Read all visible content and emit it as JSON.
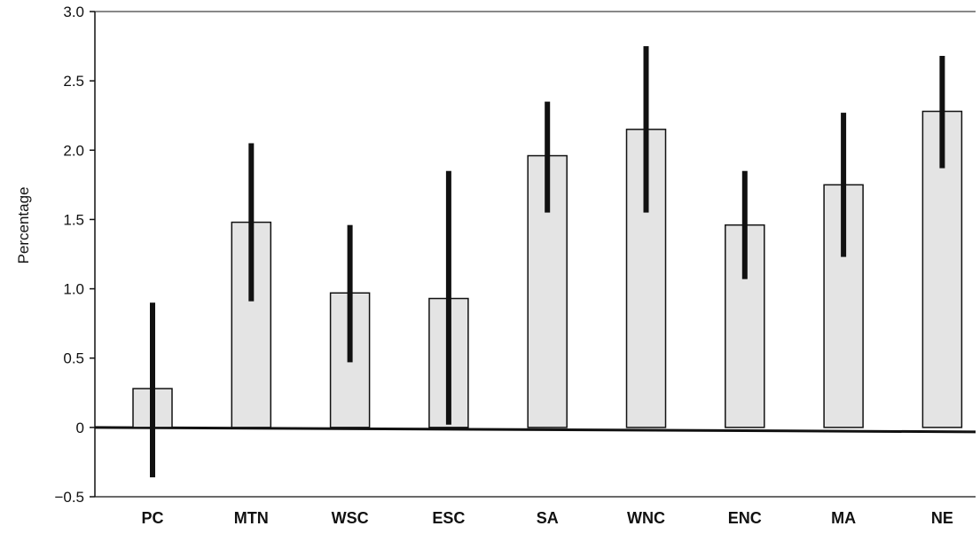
{
  "chart_data": {
    "type": "bar",
    "title": "",
    "xlabel": "",
    "ylabel": "Percentage",
    "ylim": [
      -0.5,
      3.0
    ],
    "yticks": [
      -0.5,
      0,
      0.5,
      1.0,
      1.5,
      2.0,
      2.5,
      3.0
    ],
    "ytick_labels": [
      "−0.5",
      "0",
      "0.5",
      "1.0",
      "1.5",
      "2.0",
      "2.5",
      "3.0"
    ],
    "grid": false,
    "legend": "none",
    "categories": [
      "PC",
      "MTN",
      "WSC",
      "ESC",
      "SA",
      "WNC",
      "ENC",
      "MA",
      "NE"
    ],
    "values": [
      0.28,
      1.48,
      0.97,
      0.93,
      1.96,
      2.15,
      1.46,
      1.75,
      2.28
    ],
    "error_low": [
      -0.36,
      0.91,
      0.47,
      0.02,
      1.55,
      1.55,
      1.07,
      1.23,
      1.87
    ],
    "error_high": [
      0.9,
      2.05,
      1.46,
      1.85,
      2.35,
      2.75,
      1.85,
      2.27,
      2.68
    ],
    "colors": {
      "bar_fill": "#e4e4e4",
      "bar_stroke": "#111111",
      "error_bar": "#111111",
      "axis": "#111111"
    }
  }
}
